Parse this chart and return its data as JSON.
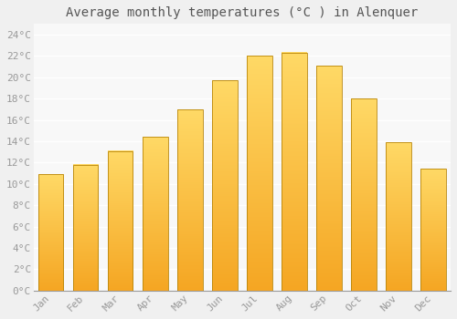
{
  "title": "Average monthly temperatures (°C ) in Alenquer",
  "months": [
    "Jan",
    "Feb",
    "Mar",
    "Apr",
    "May",
    "Jun",
    "Jul",
    "Aug",
    "Sep",
    "Oct",
    "Nov",
    "Dec"
  ],
  "values": [
    10.9,
    11.8,
    13.1,
    14.4,
    17.0,
    19.7,
    22.0,
    22.3,
    21.1,
    18.0,
    13.9,
    11.4
  ],
  "bar_color_bottom": "#F5A623",
  "bar_color_top": "#FFD966",
  "bar_edge_color": "#B8860B",
  "background_color": "#f0f0f0",
  "plot_bg_color": "#f8f8f8",
  "grid_color": "#ffffff",
  "ylim": [
    0,
    25
  ],
  "yticks": [
    0,
    2,
    4,
    6,
    8,
    10,
    12,
    14,
    16,
    18,
    20,
    22,
    24
  ],
  "ytick_labels": [
    "0°C",
    "2°C",
    "4°C",
    "6°C",
    "8°C",
    "10°C",
    "12°C",
    "14°C",
    "16°C",
    "18°C",
    "20°C",
    "22°C",
    "24°C"
  ],
  "title_fontsize": 10,
  "tick_fontsize": 8,
  "tick_font_color": "#999999",
  "font_family": "monospace"
}
